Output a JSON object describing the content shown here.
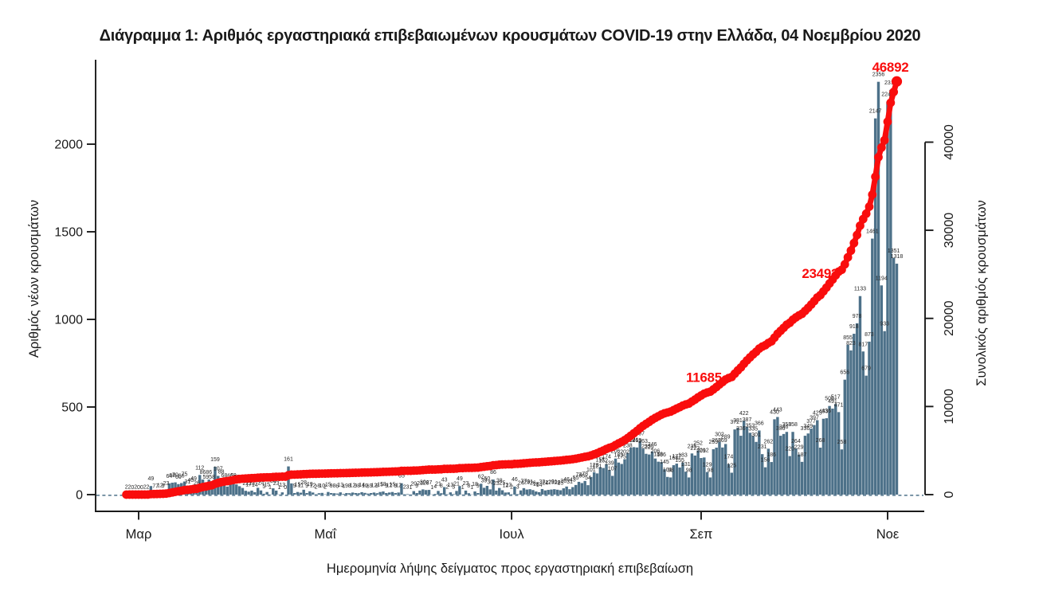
{
  "chart_data": {
    "type": "bar",
    "title": "Διάγραμμα 1: Αριθμός εργαστηριακά επιβεβαιωμένων κρουσμάτων COVID-19 στην Ελλάδα, 04 Νοεμβρίου 2020",
    "xlabel": "Ημερομηνία λήψης δείγματος προς εργαστηριακή επιβεβαίωση",
    "ylabel_left": "Αριθμός νέων κρουσμάτων",
    "ylabel_right": "Συνολικός αριθμός κρουσμάτων",
    "start_date": "2020-02-26",
    "end_date": "2020-11-04",
    "dates": [
      "2020-02-26",
      "2020-02-27",
      "2020-02-28",
      "2020-02-29",
      "2020-03-01",
      "2020-03-02",
      "2020-03-03",
      "2020-03-04",
      "2020-03-05",
      "2020-03-06",
      "2020-03-07",
      "2020-03-08",
      "2020-03-09",
      "2020-03-10",
      "2020-03-11",
      "2020-03-12",
      "2020-03-13",
      "2020-03-14",
      "2020-03-15",
      "2020-03-16",
      "2020-03-17",
      "2020-03-18",
      "2020-03-19",
      "2020-03-20",
      "2020-03-21",
      "2020-03-22",
      "2020-03-23",
      "2020-03-24",
      "2020-03-25",
      "2020-03-26",
      "2020-03-27",
      "2020-03-28",
      "2020-03-29",
      "2020-03-30",
      "2020-03-31",
      "2020-04-01",
      "2020-04-02",
      "2020-04-03",
      "2020-04-04",
      "2020-04-05",
      "2020-04-06",
      "2020-04-07",
      "2020-04-08",
      "2020-04-09",
      "2020-04-10",
      "2020-04-11",
      "2020-04-12",
      "2020-04-13",
      "2020-04-14",
      "2020-04-15",
      "2020-04-16",
      "2020-04-17",
      "2020-04-18",
      "2020-04-19",
      "2020-04-20",
      "2020-04-21",
      "2020-04-22",
      "2020-04-23",
      "2020-04-24",
      "2020-04-25",
      "2020-04-26",
      "2020-04-27",
      "2020-04-28",
      "2020-04-29",
      "2020-04-30",
      "2020-05-01",
      "2020-05-02",
      "2020-05-03",
      "2020-05-04",
      "2020-05-05",
      "2020-05-06",
      "2020-05-07",
      "2020-05-08",
      "2020-05-09",
      "2020-05-10",
      "2020-05-11",
      "2020-05-12",
      "2020-05-13",
      "2020-05-14",
      "2020-05-15",
      "2020-05-16",
      "2020-05-17",
      "2020-05-18",
      "2020-05-19",
      "2020-05-20",
      "2020-05-21",
      "2020-05-22",
      "2020-05-23",
      "2020-05-24",
      "2020-05-25",
      "2020-05-26",
      "2020-05-27",
      "2020-05-28",
      "2020-05-29",
      "2020-05-30",
      "2020-05-31",
      "2020-06-01",
      "2020-06-02",
      "2020-06-03",
      "2020-06-04",
      "2020-06-05",
      "2020-06-06",
      "2020-06-07",
      "2020-06-08",
      "2020-06-09",
      "2020-06-10",
      "2020-06-11",
      "2020-06-12",
      "2020-06-13",
      "2020-06-14",
      "2020-06-15",
      "2020-06-16",
      "2020-06-17",
      "2020-06-18",
      "2020-06-19",
      "2020-06-20",
      "2020-06-21",
      "2020-06-22",
      "2020-06-23",
      "2020-06-24",
      "2020-06-25",
      "2020-06-26",
      "2020-06-27",
      "2020-06-28",
      "2020-06-29",
      "2020-06-30",
      "2020-07-01",
      "2020-07-02",
      "2020-07-03",
      "2020-07-04",
      "2020-07-05",
      "2020-07-06",
      "2020-07-07",
      "2020-07-08",
      "2020-07-09",
      "2020-07-10",
      "2020-07-11",
      "2020-07-12",
      "2020-07-13",
      "2020-07-14",
      "2020-07-15",
      "2020-07-16",
      "2020-07-17",
      "2020-07-18",
      "2020-07-19",
      "2020-07-20",
      "2020-07-21",
      "2020-07-22",
      "2020-07-23",
      "2020-07-24",
      "2020-07-25",
      "2020-07-26",
      "2020-07-27",
      "2020-07-28",
      "2020-07-29",
      "2020-07-30",
      "2020-07-31",
      "2020-08-01",
      "2020-08-02",
      "2020-08-03",
      "2020-08-04",
      "2020-08-05",
      "2020-08-06",
      "2020-08-07",
      "2020-08-08",
      "2020-08-09",
      "2020-08-10",
      "2020-08-11",
      "2020-08-12",
      "2020-08-13",
      "2020-08-14",
      "2020-08-15",
      "2020-08-16",
      "2020-08-17",
      "2020-08-18",
      "2020-08-19",
      "2020-08-20",
      "2020-08-21",
      "2020-08-22",
      "2020-08-23",
      "2020-08-24",
      "2020-08-25",
      "2020-08-26",
      "2020-08-27",
      "2020-08-28",
      "2020-08-29",
      "2020-08-30",
      "2020-08-31",
      "2020-09-01",
      "2020-09-02",
      "2020-09-03",
      "2020-09-04",
      "2020-09-05",
      "2020-09-06",
      "2020-09-07",
      "2020-09-08",
      "2020-09-09",
      "2020-09-10",
      "2020-09-11",
      "2020-09-12",
      "2020-09-13",
      "2020-09-14",
      "2020-09-15",
      "2020-09-16",
      "2020-09-17",
      "2020-09-18",
      "2020-09-19",
      "2020-09-20",
      "2020-09-21",
      "2020-09-22",
      "2020-09-23",
      "2020-09-24",
      "2020-09-25",
      "2020-09-26",
      "2020-09-27",
      "2020-09-28",
      "2020-09-29",
      "2020-09-30",
      "2020-10-01",
      "2020-10-02",
      "2020-10-03",
      "2020-10-04",
      "2020-10-05",
      "2020-10-06",
      "2020-10-07",
      "2020-10-08",
      "2020-10-09",
      "2020-10-10",
      "2020-10-11",
      "2020-10-12",
      "2020-10-13",
      "2020-10-14",
      "2020-10-15",
      "2020-10-16",
      "2020-10-17",
      "2020-10-18",
      "2020-10-19",
      "2020-10-20",
      "2020-10-21",
      "2020-10-22",
      "2020-10-23",
      "2020-10-24",
      "2020-10-25",
      "2020-10-26",
      "2020-10-27",
      "2020-10-28",
      "2020-10-29",
      "2020-10-30",
      "2020-10-31",
      "2020-11-01",
      "2020-11-02",
      "2020-11-03",
      "2020-11-04"
    ],
    "x_ticks": [
      {
        "label": "Μαρ",
        "day_index": 4
      },
      {
        "label": "Μαΐ",
        "day_index": 65
      },
      {
        "label": "Ιουλ",
        "day_index": 126
      },
      {
        "label": "Σεπ",
        "day_index": 188
      },
      {
        "label": "Νοε",
        "day_index": 249
      }
    ],
    "y_left_ticks": [
      0,
      500,
      1000,
      1500,
      2000
    ],
    "y_left_range": [
      -100,
      2480
    ],
    "y_right_ticks": [
      0,
      10000,
      20000,
      30000,
      40000
    ],
    "y_right_range": [
      -9050,
      224400
    ],
    "grid": false,
    "legend": null,
    "series": [
      {
        "name": "Αριθμός νέων κρουσμάτων (ημερήσια κρούσματα)",
        "type": "bar",
        "axis": "left",
        "color": "#4d7189",
        "values": [
          2,
          2,
          0,
          2,
          0,
          0,
          2,
          2,
          49,
          7,
          7,
          12,
          9,
          23,
          64,
          68,
          70,
          60,
          66,
          75,
          31,
          40,
          49,
          26,
          112,
          86,
          59,
          86,
          58,
          159,
          107,
          88,
          68,
          46,
          65,
          69,
          58,
          48,
          38,
          22,
          17,
          23,
          14,
          39,
          24,
          5,
          15,
          1,
          36,
          23,
          1,
          13,
          0,
          161,
          64,
          9,
          15,
          11,
          28,
          9,
          19,
          12,
          2,
          8,
          10,
          2,
          15,
          9,
          8,
          6,
          13,
          4,
          9,
          8,
          12,
          9,
          8,
          14,
          10,
          6,
          9,
          12,
          8,
          15,
          18,
          9,
          12,
          15,
          9,
          12,
          65,
          2,
          3,
          1,
          20,
          9,
          23,
          30,
          26,
          27,
          1,
          4,
          21,
          8,
          43,
          2,
          13,
          3,
          21,
          49,
          1,
          23,
          8,
          1,
          18,
          9,
          62,
          39,
          50,
          30,
          86,
          23,
          38,
          25,
          12,
          13,
          2,
          46,
          3,
          24,
          37,
          29,
          31,
          26,
          18,
          14,
          32,
          24,
          27,
          29,
          31,
          28,
          25,
          36,
          46,
          31,
          43,
          55,
          73,
          66,
          78,
          54,
          101,
          128,
          121,
          157,
          152,
          174,
          139,
          107,
          206,
          183,
          175,
          202,
          238,
          268,
          271,
          269,
          307,
          263,
          233,
          229,
          246,
          206,
          188,
          186,
          145,
          101,
          98,
          168,
          177,
          155,
          183,
          131,
          98,
          235,
          223,
          252,
          209,
          212,
          129,
          98,
          259,
          268,
          302,
          269,
          289,
          174,
          125,
          372,
          381,
          336,
          422,
          387,
          353,
          335,
          301,
          366,
          231,
          156,
          262,
          186,
          430,
          443,
          336,
          346,
          358,
          220,
          358,
          264,
          229,
          187,
          336,
          349,
          377,
          397,
          425,
          268,
          433,
          436,
          506,
          491,
          517,
          471,
          258,
          656,
          855,
          823,
          918,
          978,
          1133,
          817,
          679,
          873,
          1461,
          2147,
          2356,
          1194,
          933,
          2243,
          2310,
          1351,
          1318
        ]
      },
      {
        "name": "Συνολικός αριθμός κρουσμάτων (αθροιστικά)",
        "type": "line",
        "axis": "right",
        "color": "#f90d0d",
        "values": [
          2,
          4,
          4,
          6,
          6,
          6,
          8,
          10,
          59,
          66,
          73,
          85,
          94,
          117,
          180,
          248,
          318,
          378,
          443,
          518,
          549,
          589,
          638,
          664,
          775,
          861,
          920,
          1005,
          1063,
          1222,
          1328,
          1416,
          1484,
          1530,
          1594,
          1663,
          1721,
          1769,
          1807,
          1829,
          1846,
          1868,
          1882,
          1921,
          1945,
          1950,
          1965,
          1966,
          2002,
          2025,
          2026,
          2039,
          2039,
          2199,
          2263,
          2272,
          2287,
          2298,
          2326,
          2335,
          2354,
          2366,
          2368,
          2376,
          2386,
          2388,
          2403,
          2412,
          2420,
          2425,
          2438,
          2442,
          2451,
          2459,
          2471,
          2480,
          2488,
          2502,
          2512,
          2518,
          2527,
          2539,
          2547,
          2562,
          2580,
          2589,
          2601,
          2616,
          2625,
          2637,
          2702,
          2704,
          2707,
          2708,
          2727,
          2736,
          2759,
          2789,
          2815,
          2842,
          2843,
          2847,
          2868,
          2876,
          2919,
          2921,
          2934,
          2937,
          2958,
          3006,
          3007,
          3030,
          3038,
          3039,
          3057,
          3066,
          3128,
          3167,
          3217,
          3247,
          3332,
          3355,
          3393,
          3418,
          3430,
          3443,
          3445,
          3491,
          3494,
          3518,
          3555,
          3583,
          3614,
          3640,
          3658,
          3672,
          3704,
          3728,
          3755,
          3784,
          3815,
          3843,
          3867,
          3903,
          3949,
          3980,
          4023,
          4078,
          4150,
          4216,
          4294,
          4348,
          4448,
          4576,
          4697,
          4853,
          5004,
          5178,
          5316,
          5423,
          5628,
          5811,
          5985,
          6186,
          6423,
          6691,
          6961,
          7229,
          7535,
          7797,
          8029,
          8257,
          8502,
          8707,
          8895,
          9080,
          9225,
          9325,
          9423,
          9590,
          9767,
          9921,
          10104,
          10234,
          10332,
          10566,
          10788,
          11039,
          11248,
          11459,
          11587,
          11685,
          11942,
          12207,
          12506,
          12772,
          13059,
          13230,
          13353,
          13721,
          14099,
          14431,
          14849,
          15233,
          15582,
          15913,
          16210,
          16572,
          16800,
          16952,
          17211,
          17393,
          17818,
          18256,
          18588,
          18929,
          19282,
          19498,
          19851,
          20110,
          20335,
          20518,
          20849,
          21192,
          21564,
          21955,
          22373,
          22636,
          23063,
          23492,
          23958,
          24407,
          24881,
          25308,
          25523,
          26129,
          26929,
          27694,
          28550,
          29462,
          30522,
          31271,
          31883,
          32682,
          34048,
          36074,
          38295,
          39388,
          40226,
          42321,
          44474,
          45701,
          46892
        ]
      }
    ],
    "bar_value_labels_shown": true,
    "annotations": [
      {
        "text": "11685",
        "day_index": 191,
        "date": "2020-09-04",
        "value": 11685,
        "axis": "right"
      },
      {
        "text": "23492",
        "day_index": 229,
        "date": "2020-10-12",
        "value": 23492,
        "axis": "right"
      },
      {
        "text": "46892",
        "day_index": 252,
        "date": "2020-11-04",
        "value": 46892,
        "axis": "right"
      }
    ]
  },
  "colors": {
    "bar": "#4d7189",
    "line": "#f90d0d",
    "annotation_text": "#f90d0d",
    "axis": "#1a1a1a",
    "bar_label": "#262626",
    "background": "#ffffff",
    "zero_dash_line": "#4d7189"
  }
}
